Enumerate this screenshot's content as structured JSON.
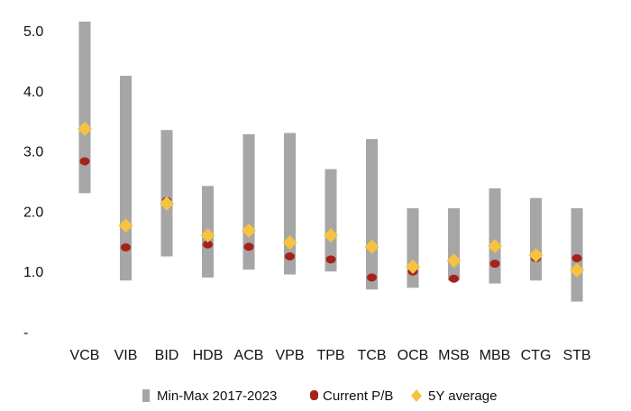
{
  "chart_data": {
    "type": "range-dot",
    "title": "",
    "xlabel": "",
    "ylabel": "",
    "categories": [
      "VCB",
      "VIB",
      "BID",
      "HDB",
      "ACB",
      "VPB",
      "TPB",
      "TCB",
      "OCB",
      "MSB",
      "MBB",
      "CTG",
      "STB"
    ],
    "y_ticks": [
      "-",
      "1.0",
      "2.0",
      "3.0",
      "4.0",
      "5.0"
    ],
    "ylim": [
      0,
      5.2
    ],
    "grid": false,
    "legend_position": "bottom",
    "series": [
      {
        "name": "Min-Max 2017-2023",
        "kind": "range",
        "min": [
          2.3,
          0.85,
          1.25,
          0.9,
          1.03,
          0.95,
          1.0,
          0.7,
          0.73,
          0.85,
          0.8,
          0.85,
          0.5
        ],
        "max": [
          5.15,
          4.25,
          3.35,
          2.42,
          3.28,
          3.3,
          2.7,
          3.2,
          2.05,
          2.05,
          2.38,
          2.22,
          2.05
        ],
        "color": "#a6a6a6"
      },
      {
        "name": "Current P/B",
        "kind": "dot",
        "values": [
          2.83,
          1.4,
          2.17,
          1.45,
          1.41,
          1.25,
          1.2,
          0.9,
          1.0,
          0.88,
          1.13,
          1.22,
          1.22
        ],
        "color": "#a5221a"
      },
      {
        "name": "5Y average",
        "kind": "diamond",
        "values": [
          3.37,
          1.76,
          2.13,
          1.6,
          1.68,
          1.48,
          1.6,
          1.41,
          1.08,
          1.18,
          1.42,
          1.27,
          1.02
        ],
        "color": "#f5c242"
      }
    ]
  }
}
